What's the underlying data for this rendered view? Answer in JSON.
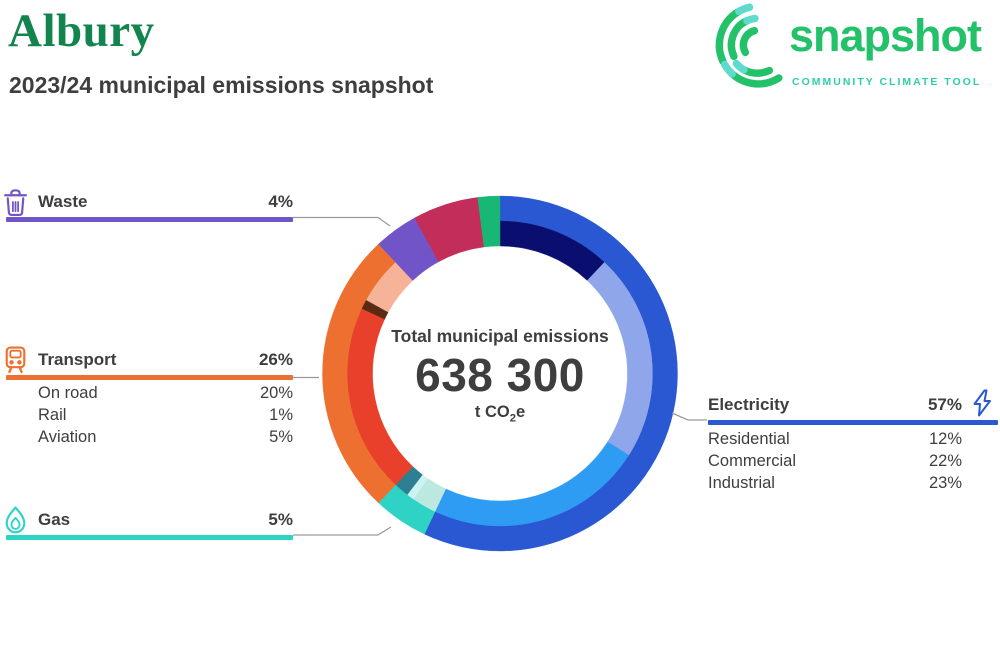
{
  "header": {
    "title": "Albury",
    "title_color": "#12854E",
    "subtitle": "2023/24 municipal emissions snapshot"
  },
  "logo": {
    "name": "snapshot",
    "tagline": "COMMUNITY CLIMATE TOOL",
    "brand_green": "#23C169",
    "brand_teal": "#5FDBCD",
    "tagline_color": "#2FCFA6"
  },
  "donut_center": {
    "label": "Total municipal emissions",
    "value": "638 300",
    "unit_prefix": "t CO",
    "unit_sub": "2",
    "unit_suffix": "e"
  },
  "sections": {
    "waste": {
      "label": "Waste",
      "value": "4%",
      "color": "#7155C8",
      "icon": "trash-icon"
    },
    "transport": {
      "label": "Transport",
      "value": "26%",
      "color": "#EE7031",
      "icon": "train-icon",
      "subs": [
        {
          "label": "On road",
          "value": "20%"
        },
        {
          "label": "Rail",
          "value": "1%"
        },
        {
          "label": "Aviation",
          "value": "5%"
        }
      ]
    },
    "gas": {
      "label": "Gas",
      "value": "5%",
      "color": "#2ED3C6",
      "icon": "flame-icon"
    },
    "electricity": {
      "label": "Electricity",
      "value": "57%",
      "color": "#2A57D2",
      "icon": "bolt-icon",
      "subs": [
        {
          "label": "Residential",
          "value": "12%"
        },
        {
          "label": "Commercial",
          "value": "22%"
        },
        {
          "label": "Industrial",
          "value": "23%"
        }
      ]
    }
  },
  "chart_data": {
    "type": "pie",
    "variant": "double-ring-donut",
    "direction": "clockwise",
    "start_angle_deg": 0,
    "center_label": "Total municipal emissions",
    "center_value": "638 300",
    "center_unit": "t CO2e",
    "outer_ring": [
      {
        "label": "Electricity",
        "pct": 57,
        "color": "#2A57D2"
      },
      {
        "label": "Gas",
        "pct": 5,
        "color": "#2ED3C6"
      },
      {
        "label": "Transport",
        "pct": 26,
        "color": "#EE7031"
      },
      {
        "label": "Waste",
        "pct": 4,
        "color": "#7155C8"
      },
      {
        "label": "",
        "pct": 6,
        "color": "#C22D59"
      },
      {
        "label": "",
        "pct": 2,
        "color": "#19B775"
      }
    ],
    "inner_ring": [
      {
        "label": "Residential",
        "pct": 12,
        "color": "#0A0E6E"
      },
      {
        "label": "Commercial",
        "pct": 22,
        "color": "#8FA7EA"
      },
      {
        "label": "Industrial",
        "pct": 23,
        "color": "#2E9CF3"
      },
      {
        "label": "",
        "pct": 2.6,
        "color": "#BCE8E0"
      },
      {
        "label": "",
        "pct": 0.8,
        "color": "#CDF2F2"
      },
      {
        "label": "",
        "pct": 1.6,
        "color": "#2E7F93"
      },
      {
        "label": "On road",
        "pct": 20,
        "color": "#E8402A"
      },
      {
        "label": "Rail",
        "pct": 1,
        "color": "#5A2A12"
      },
      {
        "label": "Aviation",
        "pct": 5,
        "color": "#F6B397"
      },
      {
        "label": "",
        "pct": 4,
        "color": "#7155C8"
      },
      {
        "label": "",
        "pct": 6,
        "color": "#C22D59"
      },
      {
        "label": "",
        "pct": 2,
        "color": "#19B775"
      }
    ]
  }
}
